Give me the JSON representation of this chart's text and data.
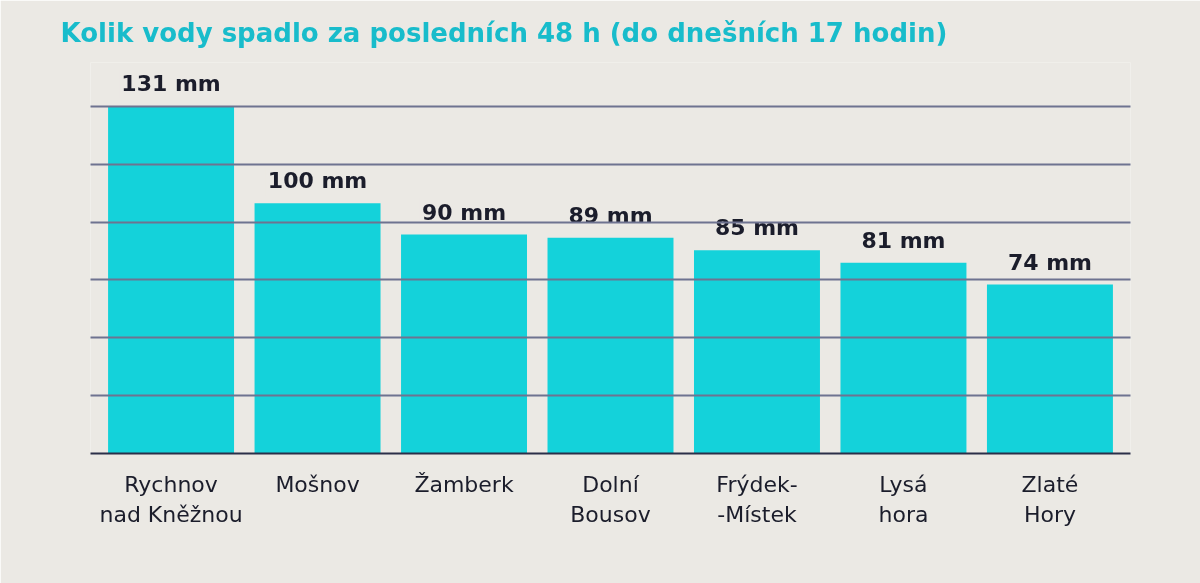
{
  "chart_data": {
    "type": "bar",
    "title": "Kolik vody spadlo za posledních 48 h (do dnešních 17 hodin)",
    "categories": [
      "Rychnov\nnad Kněžnou",
      "Mošnov",
      "Žamberk",
      "Dolní\nBousov",
      "Frýdek-\n-Místek",
      "Lysá\nhora",
      "Zlaté\nHory"
    ],
    "values": [
      131,
      100,
      90,
      89,
      85,
      81,
      74
    ],
    "value_labels": [
      "131 mm",
      "100 mm",
      "90 mm",
      "89 mm",
      "85 mm",
      "81 mm",
      "74 mm"
    ],
    "color": "#14d2da",
    "ylim": [
      20,
      145
    ],
    "yticks": [
      {
        "value": 20,
        "label": null
      },
      {
        "value": 38.5,
        "label": null
      },
      {
        "value": 57,
        "label": null
      },
      {
        "value": 75.5,
        "label": null
      },
      {
        "value": 94,
        "label": null
      },
      {
        "value": 112.5,
        "label": null
      },
      {
        "value": 131,
        "label": null
      }
    ],
    "grid": "y",
    "tick_labels": "x"
  }
}
